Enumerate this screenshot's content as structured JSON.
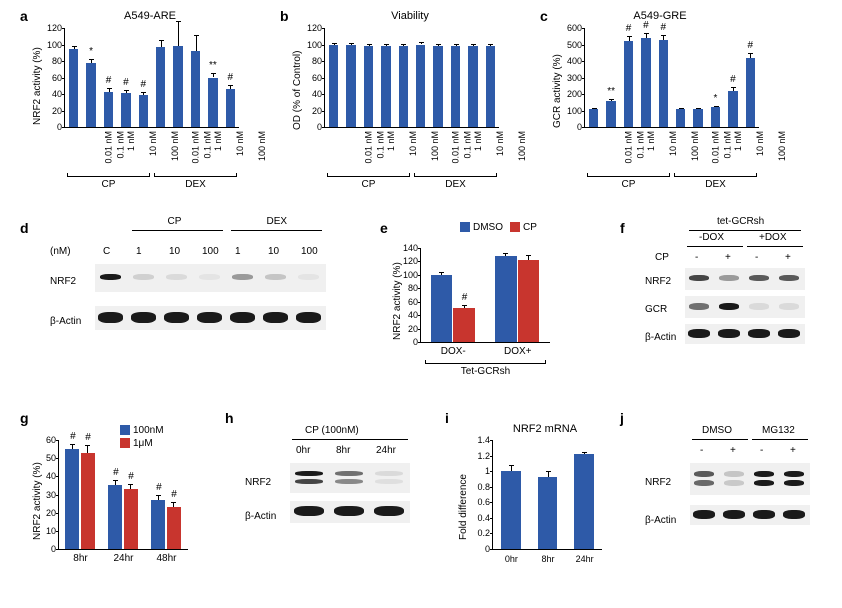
{
  "colors": {
    "bar_blue": "#2e5aa8",
    "bar_red": "#c8352e",
    "axis": "#000000",
    "blot_bg": "#f5f5f5",
    "band_dark": "#222222",
    "band_faint": "#999999"
  },
  "fonts": {
    "panel_label": 14,
    "title": 11,
    "axis": 10,
    "tick": 9
  },
  "panels": {
    "a": {
      "label": "a",
      "title": "A549-ARE",
      "ylabel": "NRF2 activity (%)",
      "ylim": [
        0,
        120
      ],
      "ytick_step": 20,
      "categories": [
        "0.01 nM",
        "0.1 nM",
        "1 nM",
        "10 nM",
        "100 nM",
        "0.01 nM",
        "0.1 nM",
        "1 nM",
        "10 nM",
        "100 nM"
      ],
      "values": [
        94,
        77,
        43,
        41,
        39,
        97,
        98,
        92,
        60,
        46
      ],
      "errors": [
        4,
        6,
        4,
        4,
        4,
        8,
        30,
        20,
        6,
        5
      ],
      "sig": [
        "",
        "*",
        "#",
        "#",
        "#",
        "",
        "",
        "",
        "**",
        "#"
      ],
      "groups": [
        {
          "label": "CP",
          "span": [
            0,
            4
          ]
        },
        {
          "label": "DEX",
          "span": [
            5,
            9
          ]
        }
      ]
    },
    "b": {
      "label": "b",
      "title": "Viability",
      "ylabel": "OD (% of Control)",
      "ylim": [
        0,
        120
      ],
      "ytick_step": 20,
      "categories": [
        "0.01 nM",
        "0.1 nM",
        "1 nM",
        "10 nM",
        "100 nM",
        "0.01 nM",
        "0.1 nM",
        "1 nM",
        "10 nM",
        "100 nM"
      ],
      "values": [
        99,
        99,
        98,
        98,
        98,
        100,
        98,
        98,
        98,
        98
      ],
      "errors": [
        3,
        3,
        3,
        3,
        3,
        3,
        3,
        3,
        3,
        3
      ],
      "sig": [
        "",
        "",
        "",
        "",
        "",
        "",
        "",
        "",
        "",
        ""
      ],
      "groups": [
        {
          "label": "CP",
          "span": [
            0,
            4
          ]
        },
        {
          "label": "DEX",
          "span": [
            5,
            9
          ]
        }
      ]
    },
    "c": {
      "label": "c",
      "title": "A549-GRE",
      "ylabel": "GCR activity (%)",
      "ylim": [
        0,
        600
      ],
      "ytick_step": 100,
      "categories": [
        "0.01 nM",
        "0.1 nM",
        "1 nM",
        "10 nM",
        "100 nM",
        "0.01 nM",
        "0.1 nM",
        "1 nM",
        "10 nM",
        "100 nM"
      ],
      "values": [
        108,
        160,
        520,
        540,
        530,
        110,
        108,
        120,
        220,
        420
      ],
      "errors": [
        10,
        10,
        30,
        30,
        30,
        8,
        8,
        10,
        20,
        30
      ],
      "sig": [
        "",
        "**",
        "#",
        "#",
        "#",
        "",
        "",
        "*",
        "#",
        "#"
      ],
      "groups": [
        {
          "label": "CP",
          "span": [
            0,
            4
          ]
        },
        {
          "label": "DEX",
          "span": [
            5,
            9
          ]
        }
      ]
    },
    "d": {
      "label": "d",
      "column_headers": {
        "unit": "(nM)",
        "lanes": [
          "C",
          "1",
          "10",
          "100",
          "1",
          "10",
          "100"
        ]
      },
      "group_headers": [
        {
          "label": "CP",
          "span": [
            1,
            3
          ]
        },
        {
          "label": "DEX",
          "span": [
            4,
            6
          ]
        }
      ],
      "rows": [
        "NRF2",
        "β-Actin"
      ],
      "nrf2_intensity": [
        1.0,
        0.15,
        0.1,
        0.05,
        0.4,
        0.2,
        0.05
      ],
      "actin_intensity": [
        1,
        1,
        1,
        1,
        1,
        1,
        1
      ]
    },
    "e": {
      "label": "e",
      "ylabel": "NRF2 activity (%)",
      "ylim": [
        0,
        140
      ],
      "ytick_step": 20,
      "categories": [
        "DOX-",
        "DOX+"
      ],
      "series": [
        {
          "name": "DMSO",
          "color": "#2e5aa8",
          "values": [
            100,
            128
          ],
          "errors": [
            5,
            5
          ],
          "sig": [
            "",
            ""
          ]
        },
        {
          "name": "CP",
          "color": "#c8352e",
          "values": [
            50,
            122
          ],
          "errors": [
            5,
            8
          ],
          "sig": [
            "#",
            ""
          ]
        }
      ],
      "super_group": "Tet-GCRsh"
    },
    "f": {
      "label": "f",
      "top_header": "tet-GCRsh",
      "sub_headers": [
        {
          "label": "-DOX",
          "span": [
            0,
            1
          ]
        },
        {
          "label": "+DOX",
          "span": [
            2,
            3
          ]
        }
      ],
      "cp_row": {
        "label": "CP",
        "values": [
          "-",
          "+",
          "-",
          "+"
        ]
      },
      "rows": [
        "NRF2",
        "GCR",
        "β-Actin"
      ],
      "nrf2_intensity": [
        0.8,
        0.4,
        0.7,
        0.7
      ],
      "gcr_intensity": [
        0.6,
        1.0,
        0.1,
        0.1
      ],
      "actin_intensity": [
        1,
        1,
        1,
        1
      ]
    },
    "g": {
      "label": "g",
      "ylabel": "NRF2 activity (%)",
      "ylim": [
        0,
        60
      ],
      "ytick_step": 10,
      "categories": [
        "8hr",
        "24hr",
        "48hr"
      ],
      "series": [
        {
          "name": "100nM",
          "color": "#2e5aa8",
          "values": [
            55,
            35,
            27
          ],
          "errors": [
            3,
            3,
            3
          ],
          "sig": [
            "#",
            "#",
            "#"
          ]
        },
        {
          "name": "1μM",
          "color": "#c8352e",
          "values": [
            53,
            33,
            23
          ],
          "errors": [
            4,
            3,
            3
          ],
          "sig": [
            "#",
            "#",
            "#"
          ]
        }
      ]
    },
    "h": {
      "label": "h",
      "header": "CP (100nM)",
      "lanes": [
        "0hr",
        "8hr",
        "24hr"
      ],
      "rows": [
        "NRF2",
        "β-Actin"
      ],
      "nrf2_intensity": [
        1.0,
        0.6,
        0.1
      ],
      "actin_intensity": [
        1,
        1,
        1
      ]
    },
    "i": {
      "label": "i",
      "title": "NRF2 mRNA",
      "ylabel": "Fold difference",
      "ylim": [
        0,
        1.4
      ],
      "ytick_step": 0.2,
      "categories": [
        "0hr",
        "8hr",
        "24hr"
      ],
      "values": [
        1.0,
        0.93,
        1.22
      ],
      "errors": [
        0.08,
        0.07,
        0.03
      ],
      "sig": [
        "",
        "",
        ""
      ]
    },
    "j": {
      "label": "j",
      "top_headers": [
        {
          "label": "DMSO",
          "span": [
            0,
            1
          ]
        },
        {
          "label": "MG132",
          "span": [
            2,
            3
          ]
        }
      ],
      "pm_row": [
        "-",
        "+",
        "-",
        "+"
      ],
      "rows": [
        "NRF2",
        "β-Actin"
      ],
      "nrf2_intensity": [
        0.7,
        0.2,
        1.3,
        1.15
      ],
      "actin_intensity": [
        1,
        1,
        1,
        1
      ]
    }
  }
}
